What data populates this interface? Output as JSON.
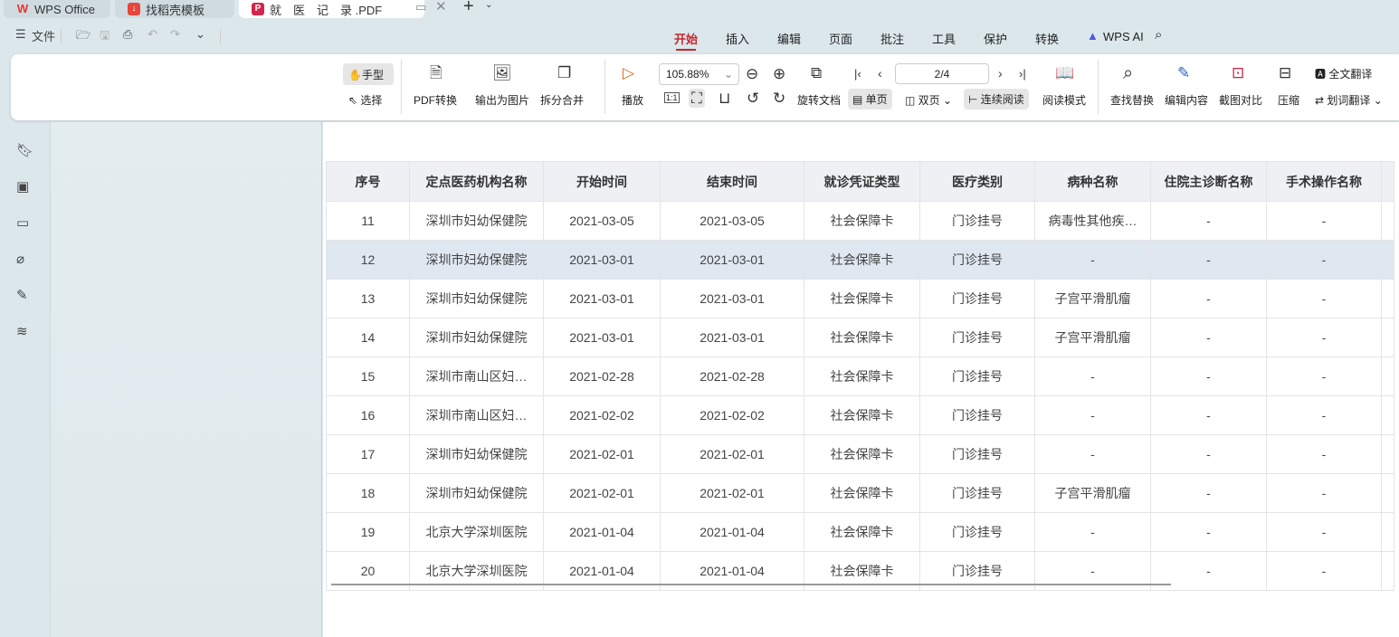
{
  "tabs": [
    {
      "label": "WPS Office",
      "icon": "wps-logo",
      "color": "#e8352d"
    },
    {
      "label": "找稻壳模板",
      "icon": "docer-logo",
      "color": "#e8453c"
    },
    {
      "label": "就　医　记　录 .PDF",
      "icon": "pdf-logo",
      "color": "#d6244a"
    }
  ],
  "quick_access": {
    "file": "文件"
  },
  "menu": [
    "开始",
    "插入",
    "编辑",
    "页面",
    "批注",
    "工具",
    "保护",
    "转换",
    "WPS AI"
  ],
  "menu_active": "开始",
  "ribbon": {
    "hand": "手型",
    "select": "选择",
    "pdf_convert": "PDF转换",
    "export_image": "输出为图片",
    "split_merge": "拆分合并",
    "play": "播放",
    "zoom": "105.88%",
    "page": "2/4",
    "rotate": "旋转文档",
    "single": "单页",
    "double": "双页",
    "continuous": "连续阅读",
    "read_mode": "阅读模式",
    "find_replace": "查找替换",
    "edit_content": "编辑内容",
    "screenshot_compare": "截图对比",
    "compress": "压缩",
    "full_translate": "全文翻译",
    "word_translate": "划词翻译",
    "actual_size": "1:1"
  },
  "table": {
    "headers": [
      "序号",
      "定点医药机构名称",
      "开始时间",
      "结束时间",
      "就诊凭证类型",
      "医疗类别",
      "病种名称",
      "住院主诊断名称",
      "手术操作名称"
    ],
    "rows": [
      [
        "11",
        "深圳市妇幼保健院",
        "2021-03-05",
        "2021-03-05",
        "社会保障卡",
        "门诊挂号",
        "病毒性其他疾…",
        "-",
        "-"
      ],
      [
        "12",
        "深圳市妇幼保健院",
        "2021-03-01",
        "2021-03-01",
        "社会保障卡",
        "门诊挂号",
        "-",
        "-",
        "-"
      ],
      [
        "13",
        "深圳市妇幼保健院",
        "2021-03-01",
        "2021-03-01",
        "社会保障卡",
        "门诊挂号",
        "子宫平滑肌瘤",
        "-",
        "-"
      ],
      [
        "14",
        "深圳市妇幼保健院",
        "2021-03-01",
        "2021-03-01",
        "社会保障卡",
        "门诊挂号",
        "子宫平滑肌瘤",
        "-",
        "-"
      ],
      [
        "15",
        "深圳市南山区妇…",
        "2021-02-28",
        "2021-02-28",
        "社会保障卡",
        "门诊挂号",
        "-",
        "-",
        "-"
      ],
      [
        "16",
        "深圳市南山区妇…",
        "2021-02-02",
        "2021-02-02",
        "社会保障卡",
        "门诊挂号",
        "-",
        "-",
        "-"
      ],
      [
        "17",
        "深圳市妇幼保健院",
        "2021-02-01",
        "2021-02-01",
        "社会保障卡",
        "门诊挂号",
        "-",
        "-",
        "-"
      ],
      [
        "18",
        "深圳市妇幼保健院",
        "2021-02-01",
        "2021-02-01",
        "社会保障卡",
        "门诊挂号",
        "子宫平滑肌瘤",
        "-",
        "-"
      ],
      [
        "19",
        "北京大学深圳医院",
        "2021-01-04",
        "2021-01-04",
        "社会保障卡",
        "门诊挂号",
        "-",
        "-",
        "-"
      ],
      [
        "20",
        "北京大学深圳医院",
        "2021-01-04",
        "2021-01-04",
        "社会保障卡",
        "门诊挂号",
        "-",
        "-",
        "-"
      ]
    ],
    "selected_row": 1
  }
}
